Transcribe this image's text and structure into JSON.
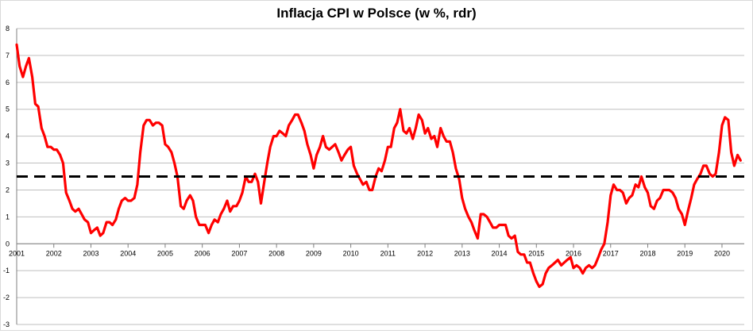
{
  "chart_data": {
    "type": "line",
    "title": "Inflacja CPI w Polsce (w %, rdr)",
    "xlabel": "",
    "ylabel": "",
    "ylim": [
      -3,
      8
    ],
    "xlim": [
      2001,
      2020.6
    ],
    "grid": true,
    "legend": "none",
    "y_ticks": [
      "-3",
      "-2",
      "-1",
      "0",
      "1",
      "2",
      "3",
      "4",
      "5",
      "6",
      "7",
      "8"
    ],
    "x_ticks": [
      "2001",
      "2002",
      "2003",
      "2004",
      "2005",
      "2006",
      "2007",
      "2008",
      "2009",
      "2010",
      "2011",
      "2012",
      "2013",
      "2014",
      "2015",
      "2016",
      "2017",
      "2018",
      "2019",
      "2020"
    ],
    "series": [
      {
        "color": "#ff0000",
        "style": "solid",
        "x": [
          2001.0,
          2001.08,
          2001.17,
          2001.25,
          2001.33,
          2001.42,
          2001.5,
          2001.58,
          2001.67,
          2001.75,
          2001.83,
          2001.92,
          2002.0,
          2002.08,
          2002.17,
          2002.25,
          2002.33,
          2002.42,
          2002.5,
          2002.58,
          2002.67,
          2002.75,
          2002.83,
          2002.92,
          2003.0,
          2003.08,
          2003.17,
          2003.25,
          2003.33,
          2003.42,
          2003.5,
          2003.58,
          2003.67,
          2003.75,
          2003.83,
          2003.92,
          2004.0,
          2004.08,
          2004.17,
          2004.25,
          2004.33,
          2004.42,
          2004.5,
          2004.58,
          2004.67,
          2004.75,
          2004.83,
          2004.92,
          2005.0,
          2005.08,
          2005.17,
          2005.25,
          2005.33,
          2005.42,
          2005.5,
          2005.58,
          2005.67,
          2005.75,
          2005.83,
          2005.92,
          2006.0,
          2006.08,
          2006.17,
          2006.25,
          2006.33,
          2006.42,
          2006.5,
          2006.58,
          2006.67,
          2006.75,
          2006.83,
          2006.92,
          2007.0,
          2007.08,
          2007.17,
          2007.25,
          2007.33,
          2007.42,
          2007.5,
          2007.58,
          2007.67,
          2007.75,
          2007.83,
          2007.92,
          2008.0,
          2008.08,
          2008.17,
          2008.25,
          2008.33,
          2008.42,
          2008.5,
          2008.58,
          2008.67,
          2008.75,
          2008.83,
          2008.92,
          2009.0,
          2009.08,
          2009.17,
          2009.25,
          2009.33,
          2009.42,
          2009.5,
          2009.58,
          2009.67,
          2009.75,
          2009.83,
          2009.92,
          2010.0,
          2010.08,
          2010.17,
          2010.25,
          2010.33,
          2010.42,
          2010.5,
          2010.58,
          2010.67,
          2010.75,
          2010.83,
          2010.92,
          2011.0,
          2011.08,
          2011.17,
          2011.25,
          2011.33,
          2011.42,
          2011.5,
          2011.58,
          2011.67,
          2011.75,
          2011.83,
          2011.92,
          2012.0,
          2012.08,
          2012.17,
          2012.25,
          2012.33,
          2012.42,
          2012.5,
          2012.58,
          2012.67,
          2012.75,
          2012.83,
          2012.92,
          2013.0,
          2013.08,
          2013.17,
          2013.25,
          2013.33,
          2013.42,
          2013.5,
          2013.58,
          2013.67,
          2013.75,
          2013.83,
          2013.92,
          2014.0,
          2014.08,
          2014.17,
          2014.25,
          2014.33,
          2014.42,
          2014.5,
          2014.58,
          2014.67,
          2014.75,
          2014.83,
          2014.92,
          2015.0,
          2015.08,
          2015.17,
          2015.25,
          2015.33,
          2015.42,
          2015.5,
          2015.58,
          2015.67,
          2015.75,
          2015.83,
          2015.92,
          2016.0,
          2016.08,
          2016.17,
          2016.25,
          2016.33,
          2016.42,
          2016.5,
          2016.58,
          2016.67,
          2016.75,
          2016.83,
          2016.92,
          2017.0,
          2017.08,
          2017.17,
          2017.25,
          2017.33,
          2017.42,
          2017.5,
          2017.58,
          2017.67,
          2017.75,
          2017.83,
          2017.92,
          2018.0,
          2018.08,
          2018.17,
          2018.25,
          2018.33,
          2018.42,
          2018.5,
          2018.58,
          2018.67,
          2018.75,
          2018.83,
          2018.92,
          2019.0,
          2019.08,
          2019.17,
          2019.25,
          2019.33,
          2019.42,
          2019.5,
          2019.58,
          2019.67,
          2019.75,
          2019.83,
          2019.92,
          2020.0,
          2020.08,
          2020.17,
          2020.25,
          2020.33,
          2020.42,
          2020.5
        ],
        "values": [
          7.4,
          6.6,
          6.2,
          6.6,
          6.9,
          6.2,
          5.2,
          5.1,
          4.3,
          4.0,
          3.6,
          3.6,
          3.5,
          3.5,
          3.3,
          3.0,
          1.9,
          1.6,
          1.3,
          1.2,
          1.3,
          1.1,
          0.9,
          0.8,
          0.4,
          0.5,
          0.6,
          0.3,
          0.4,
          0.8,
          0.8,
          0.7,
          0.9,
          1.3,
          1.6,
          1.7,
          1.6,
          1.6,
          1.7,
          2.2,
          3.4,
          4.4,
          4.6,
          4.6,
          4.4,
          4.5,
          4.5,
          4.4,
          3.7,
          3.6,
          3.4,
          3.0,
          2.5,
          1.4,
          1.3,
          1.6,
          1.8,
          1.6,
          1.0,
          0.7,
          0.7,
          0.7,
          0.4,
          0.7,
          0.9,
          0.8,
          1.1,
          1.3,
          1.6,
          1.2,
          1.4,
          1.4,
          1.6,
          1.9,
          2.5,
          2.3,
          2.3,
          2.6,
          2.3,
          1.5,
          2.3,
          3.0,
          3.6,
          4.0,
          4.0,
          4.2,
          4.1,
          4.0,
          4.4,
          4.6,
          4.8,
          4.8,
          4.5,
          4.2,
          3.7,
          3.3,
          2.8,
          3.3,
          3.6,
          4.0,
          3.6,
          3.5,
          3.6,
          3.7,
          3.4,
          3.1,
          3.3,
          3.5,
          3.6,
          2.9,
          2.6,
          2.4,
          2.2,
          2.3,
          2.0,
          2.0,
          2.5,
          2.8,
          2.7,
          3.1,
          3.6,
          3.6,
          4.3,
          4.5,
          5.0,
          4.2,
          4.1,
          4.3,
          3.9,
          4.3,
          4.8,
          4.6,
          4.1,
          4.3,
          3.9,
          4.0,
          3.6,
          4.3,
          4.0,
          3.8,
          3.8,
          3.4,
          2.8,
          2.4,
          1.7,
          1.3,
          1.0,
          0.8,
          0.5,
          0.2,
          1.1,
          1.1,
          1.0,
          0.8,
          0.6,
          0.6,
          0.7,
          0.7,
          0.7,
          0.3,
          0.2,
          0.3,
          -0.3,
          -0.4,
          -0.4,
          -0.7,
          -0.7,
          -1.1,
          -1.4,
          -1.6,
          -1.5,
          -1.1,
          -0.9,
          -0.8,
          -0.7,
          -0.6,
          -0.8,
          -0.7,
          -0.6,
          -0.5,
          -0.9,
          -0.8,
          -0.9,
          -1.1,
          -0.9,
          -0.8,
          -0.9,
          -0.8,
          -0.5,
          -0.2,
          0.0,
          0.8,
          1.8,
          2.2,
          2.0,
          2.0,
          1.9,
          1.5,
          1.7,
          1.8,
          2.2,
          2.1,
          2.5,
          2.1,
          1.9,
          1.4,
          1.3,
          1.6,
          1.7,
          2.0,
          2.0,
          2.0,
          1.9,
          1.7,
          1.3,
          1.1,
          0.7,
          1.2,
          1.7,
          2.2,
          2.4,
          2.6,
          2.9,
          2.9,
          2.6,
          2.5,
          2.6,
          3.4,
          4.4,
          4.7,
          4.6,
          3.4,
          2.9,
          3.3,
          3.1
        ]
      },
      {
        "color": "#000000",
        "style": "dashed",
        "x": [
          2001.0,
          2020.6
        ],
        "values": [
          2.5,
          2.5
        ]
      }
    ]
  }
}
